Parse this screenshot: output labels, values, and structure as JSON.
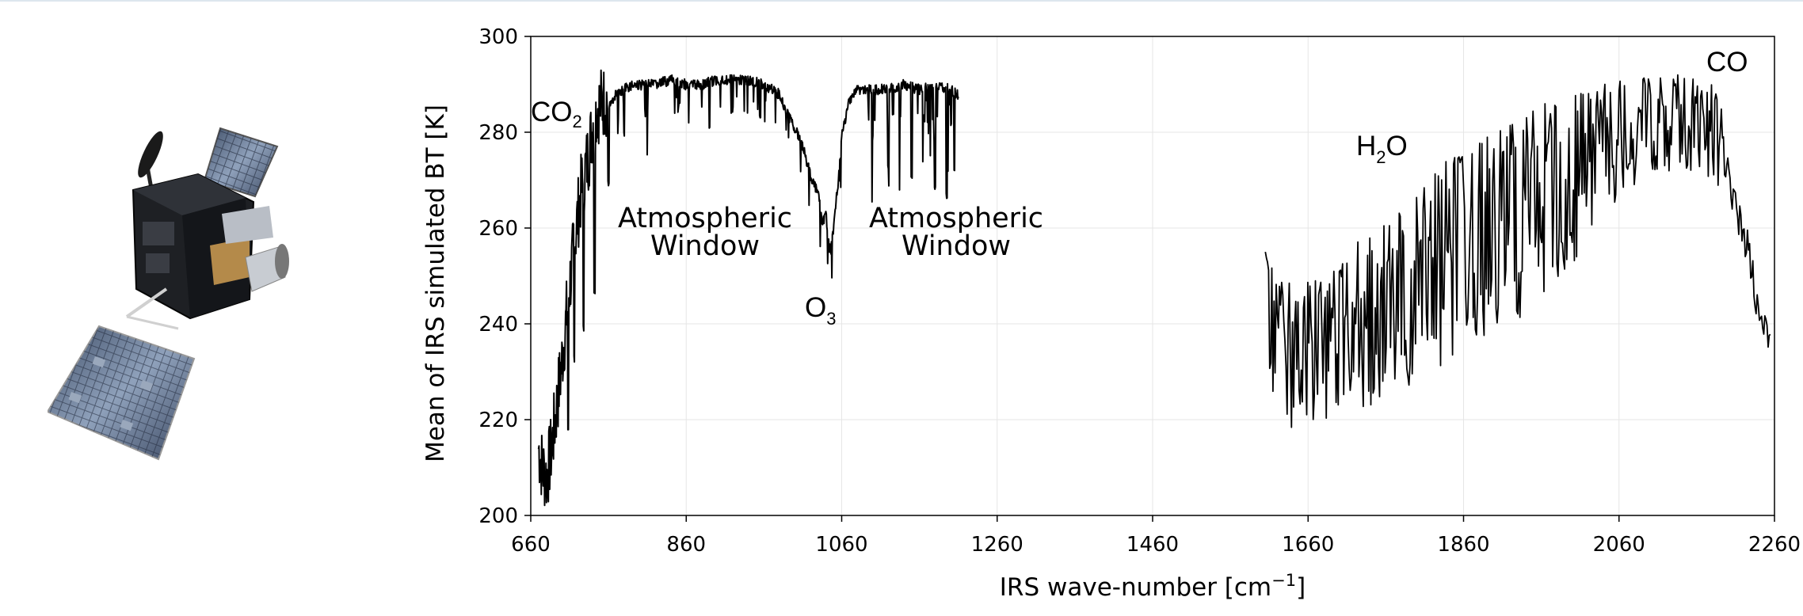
{
  "chart_data": {
    "type": "line",
    "xlabel": "IRS wave-number [cm",
    "xlabel_sup": "−1",
    "xlabel_close": "]",
    "ylabel": "Mean of IRS simulated BT [K]",
    "xlim": [
      660,
      2260
    ],
    "ylim": [
      200,
      300
    ],
    "x_ticks": [
      660,
      860,
      1060,
      1260,
      1460,
      1660,
      1860,
      2060,
      2260
    ],
    "y_ticks": [
      200,
      220,
      240,
      260,
      280,
      300
    ],
    "grid": true,
    "line_color": "#000000",
    "segments": [
      {
        "x": [
          670,
          675,
          680,
          685,
          690,
          695,
          700,
          705,
          710,
          715,
          720,
          725,
          730,
          735,
          740,
          745,
          750,
          760,
          770,
          780,
          790,
          800,
          820,
          840,
          860,
          880,
          900,
          920,
          940,
          960,
          980,
          990,
          1000,
          1010,
          1020,
          1025,
          1030,
          1035,
          1040,
          1043,
          1046,
          1050,
          1055,
          1060,
          1065,
          1070,
          1080,
          1090,
          1100,
          1120,
          1140,
          1160,
          1180,
          1200,
          1210
        ],
        "y": [
          214,
          210,
          208,
          212,
          218,
          225,
          232,
          240,
          248,
          255,
          262,
          268,
          272,
          276,
          282,
          285,
          286,
          287,
          289,
          290,
          291,
          291,
          291,
          292,
          291,
          291,
          292,
          292,
          292,
          291,
          289,
          285,
          282,
          278,
          272,
          270,
          268,
          262,
          264,
          258,
          256,
          262,
          270,
          280,
          284,
          288,
          290,
          290,
          290,
          290,
          291,
          290,
          291,
          290,
          289
        ],
        "absorption_dips": [
          [
            708,
            217
          ],
          [
            716,
            232
          ],
          [
            728,
            238
          ],
          [
            742,
            246
          ],
          [
            760,
            268
          ],
          [
            780,
            279
          ],
          [
            810,
            283
          ],
          [
            850,
            284
          ],
          [
            890,
            280
          ],
          [
            920,
            284
          ],
          [
            955,
            283
          ],
          [
            1100,
            278
          ],
          [
            1120,
            272
          ],
          [
            1135,
            283
          ],
          [
            1150,
            270
          ],
          [
            1165,
            282
          ],
          [
            1180,
            268
          ],
          [
            1195,
            266
          ],
          [
            1205,
            272
          ]
        ]
      },
      {
        "x": [
          1605,
          1620,
          1640,
          1660,
          1680,
          1700,
          1720,
          1740,
          1760,
          1780,
          1800,
          1820,
          1840,
          1860,
          1880,
          1900,
          1920,
          1940,
          1960,
          1980,
          2000,
          2020,
          2040,
          2060,
          2080,
          2100,
          2120,
          2140,
          2160,
          2180,
          2190,
          2200,
          2210,
          2220,
          2230,
          2240,
          2250,
          2255
        ],
        "peaks": [
          257,
          250,
          249,
          249,
          250,
          252,
          257,
          258,
          262,
          265,
          268,
          271,
          275,
          277,
          278,
          280,
          282,
          283,
          286,
          287,
          289,
          290,
          290,
          291,
          292,
          291,
          292,
          292,
          292,
          290,
          287,
          276,
          268,
          262,
          258,
          246,
          241,
          238
        ],
        "troughs": [
          233,
          222,
          218,
          218,
          219,
          220,
          221,
          222,
          224,
          226,
          228,
          230,
          232,
          234,
          236,
          238,
          240,
          242,
          245,
          248,
          252,
          258,
          262,
          265,
          268,
          270,
          271,
          272,
          272,
          270,
          268,
          262,
          256,
          250,
          240,
          234,
          230,
          228
        ]
      }
    ],
    "annotations": {
      "co2": {
        "main": "CO",
        "sub": "2"
      },
      "window1": {
        "line1": "Atmospheric",
        "line2": "Window"
      },
      "o3": {
        "main": "O",
        "sub": "3"
      },
      "window2": {
        "line1": "Atmospheric",
        "line2": "Window"
      },
      "h2o": {
        "main": "H",
        "sub": "2",
        "tail": "O"
      },
      "co": {
        "main": "CO"
      }
    }
  },
  "satellite": {
    "icon": "satellite-icon",
    "body_color": "#1e2024",
    "panel_color": "#5f7390",
    "gold_color": "#b48a4a",
    "foil_color": "#b9bec6"
  }
}
